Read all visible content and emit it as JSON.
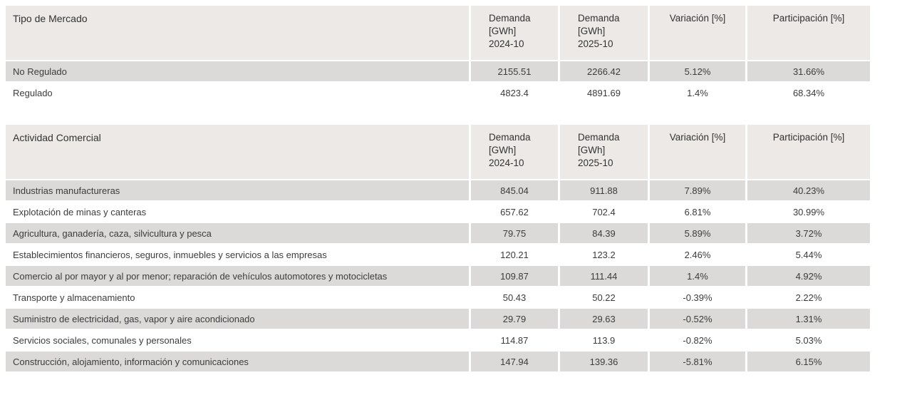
{
  "colors": {
    "header_bg": "#ece9e6",
    "row_alt_bg": "#dbdad8",
    "row_bg": "#ffffff",
    "text": "#3c3c3c",
    "page_bg": "#ffffff"
  },
  "chart_data": [
    {
      "type": "table",
      "title": "Tipo de Mercado",
      "columns": [
        "Tipo de Mercado",
        "Demanda\n[GWh]\n2024-10",
        "Demanda\n[GWh]\n2025-10",
        "Variación [%]",
        "Participación [%]"
      ],
      "rows": [
        [
          "No Regulado",
          "2155.51",
          "2266.42",
          "5.12%",
          "31.66%"
        ],
        [
          "Regulado",
          "4823.4",
          "4891.69",
          "1.4%",
          "68.34%"
        ]
      ],
      "layout": "alternating row shading, numeric columns centered"
    },
    {
      "type": "table",
      "title": "Actividad Comercial",
      "columns": [
        "Actividad Comercial",
        "Demanda\n[GWh]\n2024-10",
        "Demanda\n[GWh]\n2025-10",
        "Variación [%]",
        "Participación [%]"
      ],
      "rows": [
        [
          "Industrias manufactureras",
          "845.04",
          "911.88",
          "7.89%",
          "40.23%"
        ],
        [
          "Explotación de minas y canteras",
          "657.62",
          "702.4",
          "6.81%",
          "30.99%"
        ],
        [
          "Agricultura, ganadería, caza, silvicultura y pesca",
          "79.75",
          "84.39",
          "5.89%",
          "3.72%"
        ],
        [
          "Establecimientos financieros, seguros, inmuebles y servicios a las empresas",
          "120.21",
          "123.2",
          "2.46%",
          "5.44%"
        ],
        [
          "Comercio al por mayor y al por menor; reparación de vehículos automotores y motocicletas",
          "109.87",
          "111.44",
          "1.4%",
          "4.92%"
        ],
        [
          "Transporte y almacenamiento",
          "50.43",
          "50.22",
          "-0.39%",
          "2.22%"
        ],
        [
          "Suministro de electricidad, gas, vapor y aire acondicionado",
          "29.79",
          "29.63",
          "-0.52%",
          "1.31%"
        ],
        [
          "Servicios sociales, comunales y personales",
          "114.87",
          "113.9",
          "-0.82%",
          "5.03%"
        ],
        [
          "Construcción, alojamiento, información y comunicaciones",
          "147.94",
          "139.36",
          "-5.81%",
          "6.15%"
        ]
      ],
      "layout": "alternating row shading, numeric columns centered"
    }
  ]
}
